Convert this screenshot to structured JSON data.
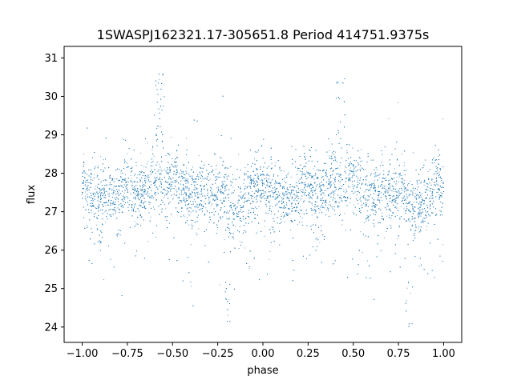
{
  "chart_data": {
    "type": "scatter",
    "title": "1SWASPJ162321.17-305651.8 Period 414751.9375s",
    "xlabel": "phase",
    "ylabel": "flux",
    "xlim": [
      -1.1,
      1.1
    ],
    "ylim": [
      23.6,
      31.3
    ],
    "xticks": [
      -1.0,
      -0.75,
      -0.5,
      -0.25,
      0.0,
      0.25,
      0.5,
      0.75,
      1.0
    ],
    "xtick_labels": [
      "−1.00",
      "−0.75",
      "−0.50",
      "−0.25",
      "0.00",
      "0.25",
      "0.50",
      "0.75",
      "1.00"
    ],
    "yticks": [
      24,
      25,
      26,
      27,
      28,
      29,
      30,
      31
    ],
    "ytick_labels": [
      "24",
      "25",
      "26",
      "27",
      "28",
      "29",
      "30",
      "31"
    ],
    "grid": false,
    "legend": false,
    "point_color": "#1f77b4",
    "profile": {
      "x": [
        0.0,
        0.03,
        0.06,
        0.09,
        0.12,
        0.15,
        0.18,
        0.21,
        0.24,
        0.27,
        0.3,
        0.33,
        0.36,
        0.39,
        0.42,
        0.45,
        0.48,
        0.51,
        0.54,
        0.57,
        0.6,
        0.63,
        0.66,
        0.69,
        0.72,
        0.75,
        0.78,
        0.81,
        0.84,
        0.87,
        0.9,
        0.93,
        0.96,
        1.0
      ],
      "y": [
        27.7,
        27.6,
        27.4,
        27.3,
        27.3,
        27.4,
        27.5,
        27.6,
        27.7,
        27.7,
        27.5,
        27.5,
        27.7,
        27.8,
        27.7,
        27.6,
        27.8,
        27.8,
        27.6,
        27.5,
        27.4,
        27.4,
        27.6,
        27.5,
        27.4,
        27.5,
        27.6,
        27.1,
        27.0,
        27.1,
        27.3,
        27.5,
        27.6,
        27.7
      ]
    },
    "features": [
      {
        "x": 0.43,
        "y_max": 30.6,
        "label": "flare"
      },
      {
        "x": -0.57,
        "y_max": 30.6,
        "label": "flare"
      },
      {
        "x": 0.81,
        "y_min": 24.0,
        "label": "dip"
      },
      {
        "x": -0.19,
        "y_min": 24.0,
        "label": "dip"
      }
    ]
  }
}
